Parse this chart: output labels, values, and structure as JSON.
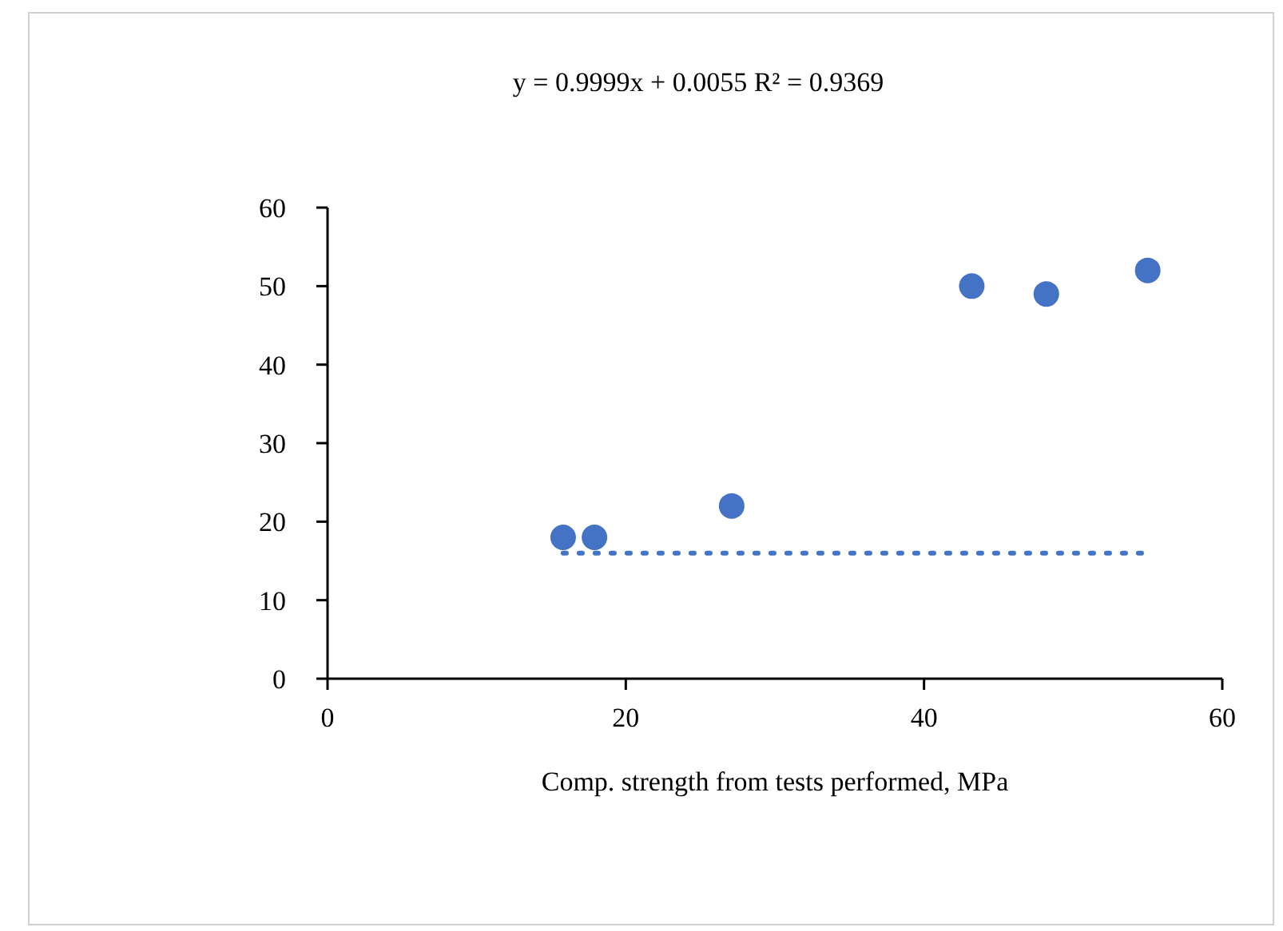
{
  "chart_data": {
    "type": "scatter",
    "title": "y = 0.9999x + 0.0055 R² = 0.9369",
    "xlabel": "Comp. strength from tests performed, MPa",
    "xlim": [
      0,
      60
    ],
    "xticks": [
      0,
      20,
      40,
      60
    ],
    "ylim": [
      0,
      60
    ],
    "yticks": [
      0,
      10,
      20,
      30,
      40,
      50,
      60
    ],
    "grid": false,
    "marker": "circle",
    "series": [
      {
        "color": "#4472c4",
        "x": [
          15.8,
          17.9,
          27.1,
          43.2,
          48.2,
          55
        ],
        "values": [
          18,
          18,
          22,
          50,
          49,
          52
        ]
      },
      {
        "type": "line",
        "line_style": "dotted",
        "marker": "none",
        "color": "#4472c4",
        "x": [
          15.8,
          54.7
        ],
        "values": [
          16,
          16
        ]
      }
    ]
  }
}
